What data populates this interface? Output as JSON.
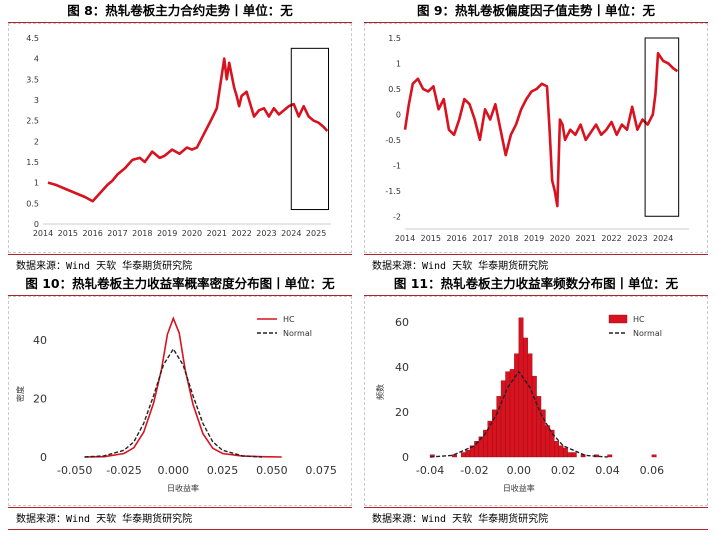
{
  "panels": {
    "fig8": {
      "title": "图 8：热轧卷板主力合约走势丨单位：无",
      "source": "数据来源：Wind 天软 华泰期货研究院"
    },
    "fig9": {
      "title": "图 9：热轧卷板偏度因子值走势丨单位：无",
      "source": "数据来源：Wind 天软 华泰期货研究院"
    },
    "fig10": {
      "title": "图 10：热轧卷板主力收益率概率密度分布图丨单位：无",
      "source": "数据来源：Wind 天软 华泰期货研究院"
    },
    "fig11": {
      "title": "图 11：热轧卷板主力收益率频数分布图丨单位：无",
      "source": "数据来源：Wind 天软 华泰期货研究院"
    }
  },
  "colors": {
    "accent": "#b0232b",
    "series": "#d8121f",
    "normal": "#222222"
  },
  "chart_data": [
    {
      "id": "fig8",
      "type": "line",
      "title": "热轧卷板主力合约走势",
      "x_ticks": [
        "2014",
        "2015",
        "2016",
        "2017",
        "2018",
        "2019",
        "2020",
        "2021",
        "2022",
        "2023",
        "2024",
        "2025"
      ],
      "y_ticks": [
        "0",
        "0.5",
        "1",
        "1.5",
        "2",
        "2.5",
        "3",
        "3.5",
        "4",
        "4.5"
      ],
      "xlim": [
        2014.0,
        2025.6
      ],
      "ylim": [
        0,
        4.5
      ],
      "highlight_box": {
        "x": [
          2024.0,
          2025.5
        ],
        "y": [
          0.35,
          4.25
        ]
      },
      "series": [
        {
          "x": [
            2014.2,
            2014.5,
            2014.9,
            2015.3,
            2015.7,
            2016.0,
            2016.3,
            2016.6,
            2016.8,
            2017.0,
            2017.3,
            2017.6,
            2017.9,
            2018.1,
            2018.4,
            2018.7,
            2018.9,
            2019.2,
            2019.5,
            2019.8,
            2020.0,
            2020.2,
            2020.5,
            2020.8,
            2021.0,
            2021.15,
            2021.3,
            2021.4,
            2021.5,
            2021.6,
            2021.7,
            2021.8,
            2021.9,
            2022.0,
            2022.2,
            2022.35,
            2022.5,
            2022.7,
            2022.9,
            2023.1,
            2023.3,
            2023.5,
            2023.7,
            2023.9,
            2024.1,
            2024.3,
            2024.5,
            2024.7,
            2024.9,
            2025.1,
            2025.3,
            2025.45
          ],
          "y": [
            1.0,
            0.95,
            0.85,
            0.75,
            0.65,
            0.55,
            0.75,
            0.95,
            1.05,
            1.2,
            1.35,
            1.55,
            1.6,
            1.5,
            1.75,
            1.6,
            1.65,
            1.8,
            1.7,
            1.85,
            1.8,
            1.85,
            2.2,
            2.55,
            2.8,
            3.4,
            4.0,
            3.5,
            3.9,
            3.6,
            3.3,
            3.1,
            2.85,
            3.1,
            3.2,
            2.9,
            2.6,
            2.75,
            2.8,
            2.6,
            2.8,
            2.65,
            2.75,
            2.85,
            2.9,
            2.6,
            2.85,
            2.6,
            2.5,
            2.45,
            2.35,
            2.25
          ]
        }
      ]
    },
    {
      "id": "fig9",
      "type": "line",
      "title": "热轧卷板偏度因子值走势",
      "x_ticks": [
        "2014",
        "2015",
        "2016",
        "2017",
        "2018",
        "2019",
        "2020",
        "2021",
        "2022",
        "2023",
        "2024"
      ],
      "y_ticks": [
        "-2",
        "-1.5",
        "-1",
        "-0.5",
        "0",
        "0.5",
        "1",
        "1.5"
      ],
      "xlim": [
        2014.0,
        2025.0
      ],
      "ylim": [
        -2.25,
        1.5
      ],
      "highlight_box": {
        "x": [
          2023.3,
          2024.6
        ],
        "y": [
          -2.0,
          1.5
        ]
      },
      "series": [
        {
          "x": [
            2014.0,
            2014.15,
            2014.3,
            2014.5,
            2014.7,
            2014.9,
            2015.1,
            2015.3,
            2015.5,
            2015.7,
            2015.9,
            2016.1,
            2016.3,
            2016.5,
            2016.7,
            2016.9,
            2017.1,
            2017.3,
            2017.5,
            2017.7,
            2017.9,
            2018.1,
            2018.3,
            2018.5,
            2018.7,
            2018.9,
            2019.1,
            2019.3,
            2019.5,
            2019.6,
            2019.7,
            2019.8,
            2019.9,
            2020.0,
            2020.1,
            2020.2,
            2020.4,
            2020.6,
            2020.8,
            2021.0,
            2021.2,
            2021.4,
            2021.6,
            2021.8,
            2022.0,
            2022.2,
            2022.4,
            2022.6,
            2022.8,
            2023.0,
            2023.2,
            2023.4,
            2023.6,
            2023.7,
            2023.8,
            2024.0,
            2024.2,
            2024.4,
            2024.55
          ],
          "y": [
            -0.3,
            0.2,
            0.6,
            0.7,
            0.5,
            0.45,
            0.55,
            0.1,
            0.3,
            -0.3,
            -0.4,
            -0.1,
            0.3,
            0.2,
            -0.1,
            -0.5,
            0.1,
            -0.1,
            0.2,
            -0.3,
            -0.8,
            -0.4,
            -0.2,
            0.1,
            0.3,
            0.45,
            0.5,
            0.6,
            0.55,
            -0.3,
            -1.3,
            -1.5,
            -1.8,
            -0.1,
            -0.2,
            -0.5,
            -0.3,
            -0.4,
            -0.2,
            -0.5,
            -0.35,
            -0.2,
            -0.4,
            -0.3,
            -0.15,
            -0.4,
            -0.2,
            -0.3,
            0.15,
            -0.3,
            -0.1,
            -0.2,
            0.0,
            0.4,
            1.2,
            1.05,
            1.0,
            0.9,
            0.85
          ]
        }
      ]
    },
    {
      "id": "fig10",
      "type": "line",
      "title": "热轧卷板主力收益率概率密度分布图",
      "xlabel": "日收益率",
      "ylabel": "密度",
      "x_ticks": [
        "-0.050",
        "-0.025",
        "0.000",
        "0.025",
        "0.050",
        "0.075"
      ],
      "y_ticks": [
        "0",
        "20",
        "40"
      ],
      "xlim": [
        -0.06,
        0.08
      ],
      "ylim": [
        0,
        50
      ],
      "legend": "top-right",
      "series": [
        {
          "name": "HC",
          "style": "solid",
          "x": [
            -0.045,
            -0.035,
            -0.025,
            -0.02,
            -0.015,
            -0.01,
            -0.006,
            -0.003,
            0.0,
            0.003,
            0.006,
            0.01,
            0.015,
            0.02,
            0.025,
            0.035,
            0.045,
            0.055
          ],
          "y": [
            0,
            0.1,
            1.2,
            3.2,
            8.5,
            18.5,
            30.0,
            42.0,
            47.5,
            42.5,
            30.0,
            18.0,
            8.0,
            3.0,
            1.2,
            0.3,
            0.1,
            0
          ]
        },
        {
          "name": "Normal",
          "style": "dashed",
          "x": [
            -0.045,
            -0.035,
            -0.025,
            -0.02,
            -0.015,
            -0.01,
            -0.005,
            0.0,
            0.005,
            0.01,
            0.015,
            0.02,
            0.025,
            0.035,
            0.045
          ],
          "y": [
            0,
            0.4,
            2.3,
            5.2,
            11.5,
            21.0,
            31.5,
            37.0,
            31.5,
            21.0,
            11.5,
            5.2,
            2.3,
            0.4,
            0
          ]
        }
      ]
    },
    {
      "id": "fig11",
      "type": "bar",
      "title": "热轧卷板主力收益率频数分布图",
      "xlabel": "日收益率",
      "ylabel": "频数",
      "x_ticks": [
        "-0.04",
        "-0.02",
        "0.00",
        "0.02",
        "0.04",
        "0.06"
      ],
      "y_ticks": [
        "0",
        "20",
        "40",
        "60"
      ],
      "xlim": [
        -0.045,
        0.065
      ],
      "ylim": [
        0,
        65
      ],
      "legend": "top-right",
      "bin_width": 0.002,
      "series": [
        {
          "name": "HC",
          "kind": "histogram",
          "bin_start": [
            -0.04,
            -0.03,
            -0.026,
            -0.024,
            -0.022,
            -0.02,
            -0.018,
            -0.016,
            -0.014,
            -0.012,
            -0.01,
            -0.008,
            -0.006,
            -0.004,
            -0.002,
            0.0,
            0.002,
            0.004,
            0.006,
            0.008,
            0.01,
            0.012,
            0.014,
            0.016,
            0.018,
            0.02,
            0.022,
            0.024,
            0.028,
            0.034,
            0.04,
            0.06
          ],
          "values": [
            1,
            1,
            2,
            3,
            5,
            7,
            9,
            12,
            16,
            21,
            27,
            34,
            38,
            39,
            46,
            62,
            53,
            46,
            36,
            27,
            21,
            14,
            12,
            7,
            5,
            4,
            2,
            2,
            1,
            1,
            1,
            1
          ]
        },
        {
          "name": "Normal",
          "kind": "curve",
          "x": [
            -0.04,
            -0.03,
            -0.02,
            -0.015,
            -0.01,
            -0.005,
            0.0,
            0.005,
            0.01,
            0.015,
            0.02,
            0.03,
            0.04
          ],
          "y": [
            0,
            0.7,
            5.0,
            10.5,
            19.0,
            31.0,
            38.0,
            31.0,
            19.0,
            10.5,
            5.0,
            0.7,
            0
          ]
        }
      ]
    }
  ]
}
